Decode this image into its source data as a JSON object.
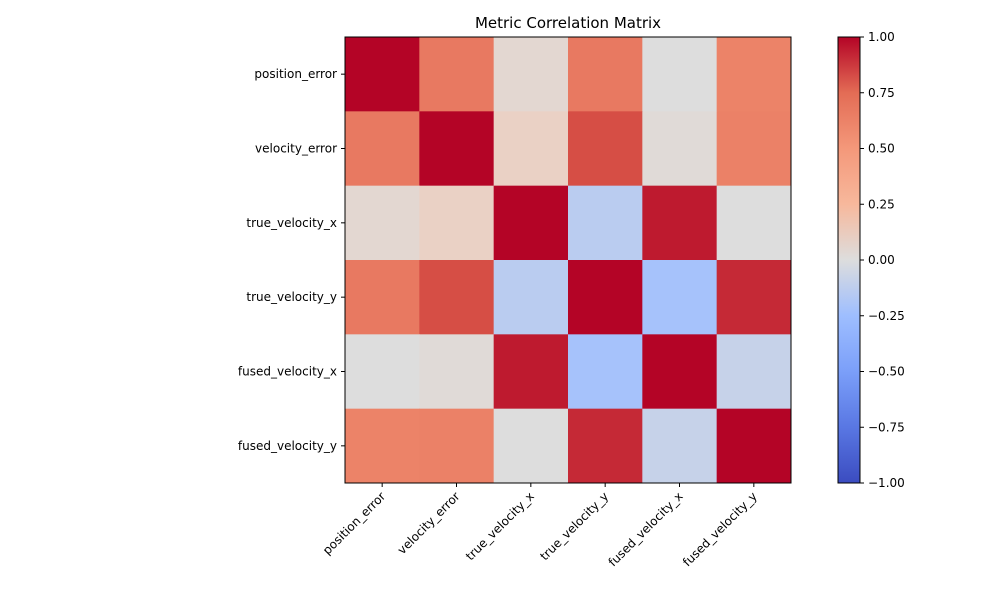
{
  "chart_data": {
    "type": "heatmap",
    "title": "Metric Correlation Matrix",
    "row_labels": [
      "position_error",
      "velocity_error",
      "true_velocity_x",
      "true_velocity_y",
      "fused_velocity_x",
      "fused_velocity_y"
    ],
    "col_labels": [
      "position_error",
      "velocity_error",
      "true_velocity_x",
      "true_velocity_y",
      "fused_velocity_x",
      "fused_velocity_y"
    ],
    "values": [
      [
        1.0,
        0.62,
        0.08,
        0.62,
        0.0,
        0.57
      ],
      [
        0.62,
        1.0,
        0.17,
        0.8,
        0.04,
        0.58
      ],
      [
        0.08,
        0.17,
        1.0,
        -0.14,
        0.94,
        0.0
      ],
      [
        0.62,
        0.8,
        -0.14,
        1.0,
        -0.22,
        0.9
      ],
      [
        0.0,
        0.04,
        0.94,
        -0.22,
        1.0,
        -0.09
      ],
      [
        0.57,
        0.58,
        0.0,
        0.9,
        -0.09,
        1.0
      ]
    ],
    "colormap": "coolwarm",
    "vmin": -1.0,
    "vmax": 1.0,
    "colorbar_ticks": [
      "1.00",
      "0.75",
      "0.50",
      "0.25",
      "0.00",
      "−0.25",
      "−0.50",
      "−0.75",
      "−1.00"
    ],
    "colorbar_tick_values": [
      1.0,
      0.75,
      0.5,
      0.25,
      0.0,
      -0.25,
      -0.5,
      -0.75,
      -1.0
    ],
    "grid": false,
    "legend": "colorbar-right"
  }
}
